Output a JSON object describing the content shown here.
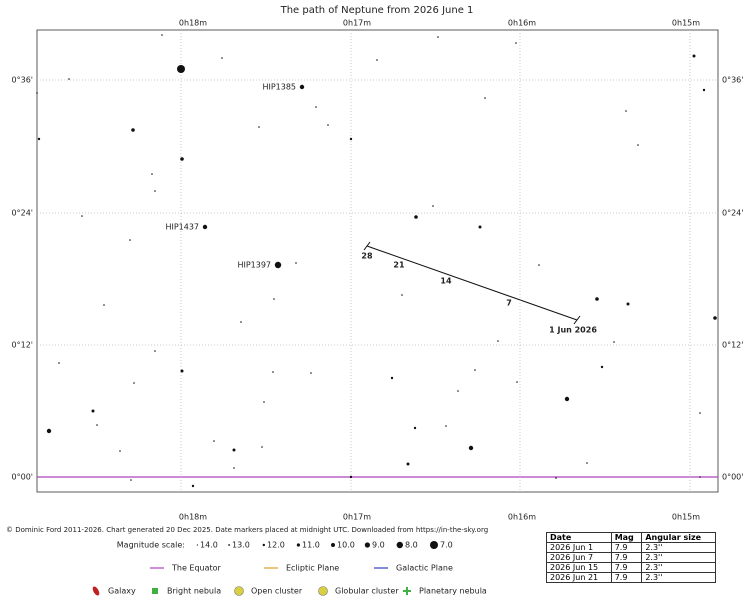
{
  "title": "The path of Neptune from 2026 June 1",
  "x_axis": {
    "labels": [
      "0h18m",
      "0h17m",
      "0h16m",
      "0h15m"
    ]
  },
  "y_axis": {
    "labels": [
      "0°36'",
      "0°24'",
      "0°12'",
      "0°00'"
    ]
  },
  "star_labels": [
    "HIP1385",
    "HIP1437",
    "HIP1397"
  ],
  "path": {
    "date_markers": [
      "28",
      "21",
      "14",
      "7"
    ],
    "start_label": "1 Jun 2026"
  },
  "credit": "© Dominic Ford 2011-2026. Chart generated 20 Dec 2025. Date markers placed at midnight UTC. Downloaded from https://in-the-sky.org",
  "magnitude_scale": {
    "label": "Magnitude scale:",
    "levels": [
      "14.0",
      "13.0",
      "12.0",
      "11.0",
      "10.0",
      "9.0",
      "8.0",
      "7.0"
    ]
  },
  "plane_legend": [
    "The Equator",
    "Ecliptic Plane",
    "Galactic Plane"
  ],
  "object_legend": [
    "Galaxy",
    "Bright nebula",
    "Open cluster",
    "Globular cluster",
    "Planetary nebula"
  ],
  "table": {
    "headers": [
      "Date",
      "Mag",
      "Angular size"
    ],
    "rows": [
      [
        "2026 Jun 1",
        "7.9",
        "2.3''"
      ],
      [
        "2026 Jun 7",
        "7.9",
        "2.3''"
      ],
      [
        "2026 Jun 15",
        "7.9",
        "2.3''"
      ],
      [
        "2026 Jun 21",
        "7.9",
        "2.3''"
      ]
    ]
  }
}
